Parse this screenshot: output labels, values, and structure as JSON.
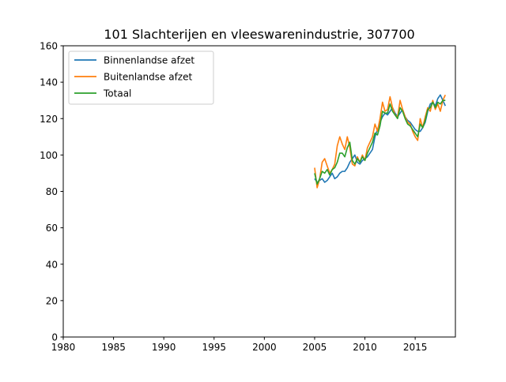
{
  "chart_data": {
    "type": "line",
    "title": "101 Slachterijen en vleeswarenindustrie, 307700",
    "xlabel": "",
    "ylabel": "",
    "xlim": [
      1980,
      2019
    ],
    "ylim": [
      0,
      160
    ],
    "xticks": [
      "1980",
      "1985",
      "1990",
      "1995",
      "2000",
      "2005",
      "2010",
      "2015"
    ],
    "yticks": [
      "0",
      "20",
      "40",
      "60",
      "80",
      "100",
      "120",
      "140",
      "160"
    ],
    "grid": false,
    "legend_position": "top-left",
    "series": [
      {
        "name": "Binnenlandse afzet",
        "color": "#1f77b4",
        "x": [
          2005.0,
          2005.25,
          2005.5,
          2005.75,
          2006.0,
          2006.25,
          2006.5,
          2006.75,
          2007.0,
          2007.25,
          2007.5,
          2007.75,
          2008.0,
          2008.25,
          2008.5,
          2008.75,
          2009.0,
          2009.25,
          2009.5,
          2009.75,
          2010.0,
          2010.25,
          2010.5,
          2010.75,
          2011.0,
          2011.25,
          2011.5,
          2011.75,
          2012.0,
          2012.25,
          2012.5,
          2012.75,
          2013.0,
          2013.25,
          2013.5,
          2013.75,
          2014.0,
          2014.25,
          2014.5,
          2014.75,
          2015.0,
          2015.25,
          2015.5,
          2015.75,
          2016.0,
          2016.25,
          2016.5,
          2016.75,
          2017.0,
          2017.25,
          2017.5,
          2017.75,
          2018.0
        ],
        "values": [
          87,
          85,
          86,
          87,
          85,
          86,
          88,
          90,
          87,
          88,
          90,
          91,
          91,
          93,
          96,
          98,
          100,
          96,
          95,
          97,
          98,
          99,
          101,
          103,
          110,
          114,
          118,
          121,
          123,
          122,
          124,
          126,
          123,
          121,
          123,
          125,
          121,
          119,
          118,
          116,
          114,
          113,
          113,
          115,
          118,
          124,
          128,
          129,
          127,
          131,
          133,
          130,
          127
        ]
      },
      {
        "name": "Buitenlandse afzet",
        "color": "#ff7f0e",
        "x": [
          2005.0,
          2005.25,
          2005.5,
          2005.75,
          2006.0,
          2006.25,
          2006.5,
          2006.75,
          2007.0,
          2007.25,
          2007.5,
          2007.75,
          2008.0,
          2008.25,
          2008.5,
          2008.75,
          2009.0,
          2009.25,
          2009.5,
          2009.75,
          2010.0,
          2010.25,
          2010.5,
          2010.75,
          2011.0,
          2011.25,
          2011.5,
          2011.75,
          2012.0,
          2012.25,
          2012.5,
          2012.75,
          2013.0,
          2013.25,
          2013.5,
          2013.75,
          2014.0,
          2014.25,
          2014.5,
          2014.75,
          2015.0,
          2015.25,
          2015.5,
          2015.75,
          2016.0,
          2016.25,
          2016.5,
          2016.75,
          2017.0,
          2017.25,
          2017.5,
          2017.75,
          2018.0
        ],
        "values": [
          93,
          82,
          87,
          96,
          98,
          94,
          90,
          92,
          95,
          105,
          110,
          106,
          103,
          110,
          104,
          95,
          94,
          99,
          96,
          100,
          97,
          104,
          107,
          110,
          117,
          113,
          120,
          129,
          124,
          125,
          132,
          126,
          122,
          121,
          130,
          125,
          121,
          118,
          117,
          113,
          110,
          108,
          120,
          115,
          121,
          126,
          124,
          130,
          125,
          128,
          124,
          130,
          133
        ]
      },
      {
        "name": "Totaal",
        "color": "#2ca02c",
        "x": [
          2005.0,
          2005.25,
          2005.5,
          2005.75,
          2006.0,
          2006.25,
          2006.5,
          2006.75,
          2007.0,
          2007.25,
          2007.5,
          2007.75,
          2008.0,
          2008.25,
          2008.5,
          2008.75,
          2009.0,
          2009.25,
          2009.5,
          2009.75,
          2010.0,
          2010.25,
          2010.5,
          2010.75,
          2011.0,
          2011.25,
          2011.5,
          2011.75,
          2012.0,
          2012.25,
          2012.5,
          2012.75,
          2013.0,
          2013.25,
          2013.5,
          2013.75,
          2014.0,
          2014.25,
          2014.5,
          2014.75,
          2015.0,
          2015.25,
          2015.5,
          2015.75,
          2016.0,
          2016.25,
          2016.5,
          2016.75,
          2017.0,
          2017.25,
          2017.5,
          2017.75,
          2018.0
        ],
        "values": [
          90,
          84,
          87,
          91,
          90,
          92,
          89,
          92,
          93,
          96,
          101,
          101,
          99,
          104,
          107,
          97,
          95,
          98,
          96,
          99,
          97,
          101,
          104,
          107,
          112,
          111,
          116,
          124,
          123,
          123,
          128,
          124,
          122,
          120,
          126,
          124,
          120,
          117,
          116,
          114,
          112,
          110,
          117,
          115,
          119,
          125,
          126,
          129,
          126,
          129,
          128,
          130,
          130
        ]
      }
    ]
  }
}
